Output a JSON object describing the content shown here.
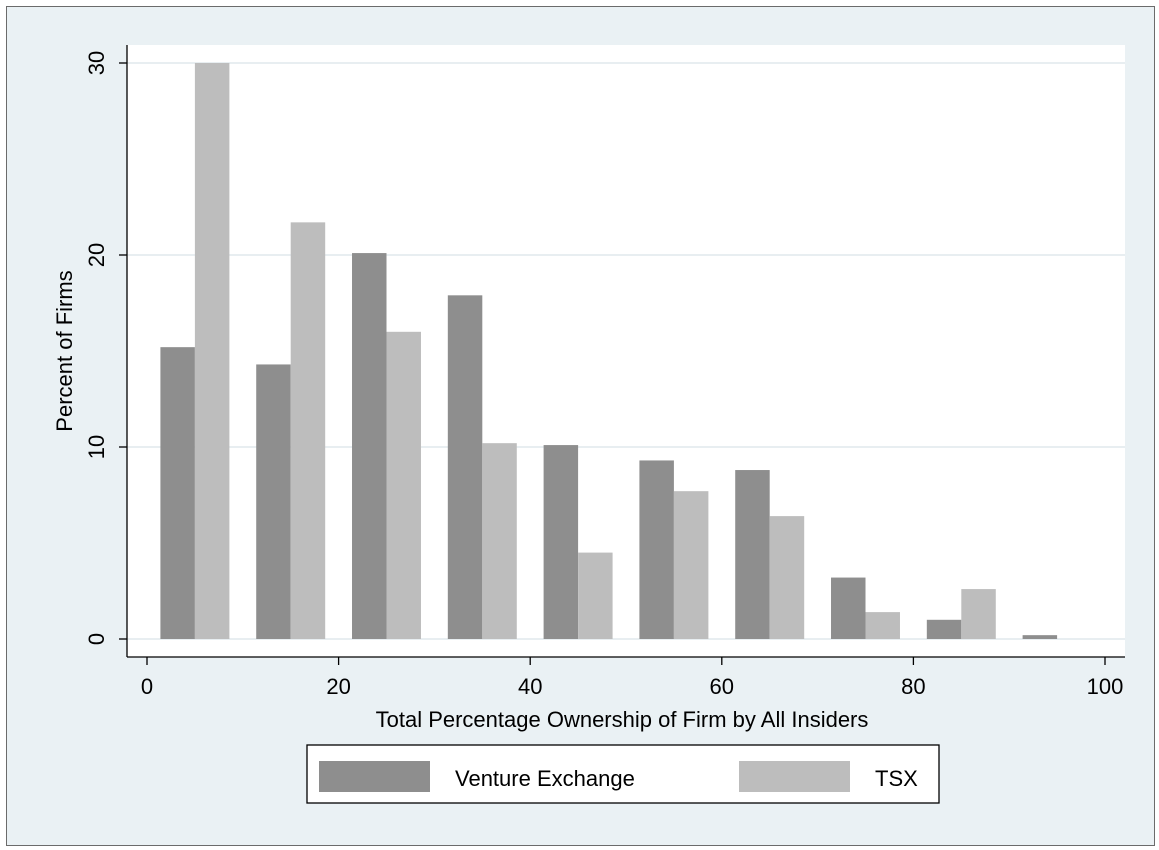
{
  "chart_data": {
    "type": "bar",
    "xlabel": "Total Percentage Ownership of Firm by All Insiders",
    "ylabel": "Percent of Firms",
    "xlim": [
      0,
      100
    ],
    "ylim": [
      0,
      30
    ],
    "xticks": [
      0,
      20,
      40,
      60,
      80,
      100
    ],
    "yticks": [
      0,
      10,
      20,
      30
    ],
    "grid": true,
    "legend": "bottom",
    "bin_width": 10,
    "bin_starts": [
      0,
      10,
      20,
      30,
      40,
      50,
      60,
      70,
      80,
      90
    ],
    "series": [
      {
        "name": "Venture Exchange",
        "color": "#8e8e8e",
        "values": [
          15.2,
          14.3,
          20.1,
          17.9,
          10.1,
          9.3,
          8.8,
          3.2,
          1.0,
          0.2
        ]
      },
      {
        "name": "TSX",
        "color": "#bdbdbd",
        "values": [
          30.0,
          21.7,
          16.0,
          10.2,
          4.5,
          7.7,
          6.4,
          1.4,
          2.6,
          0.0
        ]
      }
    ]
  }
}
